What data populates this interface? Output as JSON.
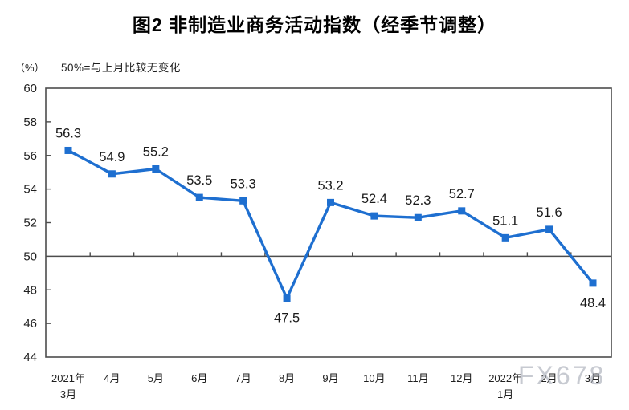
{
  "header": {
    "title": "图2 非制造业商务活动指数（经季节调整）",
    "unit_label": "（%）",
    "note": "50%=与上月比较无变化"
  },
  "watermark": "FX678",
  "chart_data": {
    "type": "line",
    "title": "图2 非制造业商务活动指数（经季节调整）",
    "ylabel": "（%）",
    "annotation": "50%=与上月比较无变化",
    "categories": [
      "2021年|3月",
      "4月",
      "5月",
      "6月",
      "7月",
      "8月",
      "9月",
      "10月",
      "11月",
      "12月",
      "2022年|1月",
      "2月",
      "3月"
    ],
    "values": [
      56.3,
      54.9,
      55.2,
      53.5,
      53.3,
      47.5,
      53.2,
      52.4,
      52.3,
      52.7,
      51.1,
      51.6,
      48.4
    ],
    "data_label_side": [
      "above",
      "above",
      "above",
      "above",
      "above",
      "below",
      "above",
      "above",
      "above",
      "above",
      "above",
      "above",
      "below"
    ],
    "ylim": [
      44,
      60
    ],
    "ytick_step": 2,
    "yticks": [
      44,
      46,
      48,
      50,
      52,
      54,
      56,
      58,
      60
    ],
    "reference_line": 50,
    "grid": false,
    "legend_position": "none",
    "marker": "square",
    "line_color": "#1e6fd0",
    "axis_color": "#4d4d4d",
    "text_color": "#1f1f1f",
    "data_label_color": "#1b1b1b"
  }
}
